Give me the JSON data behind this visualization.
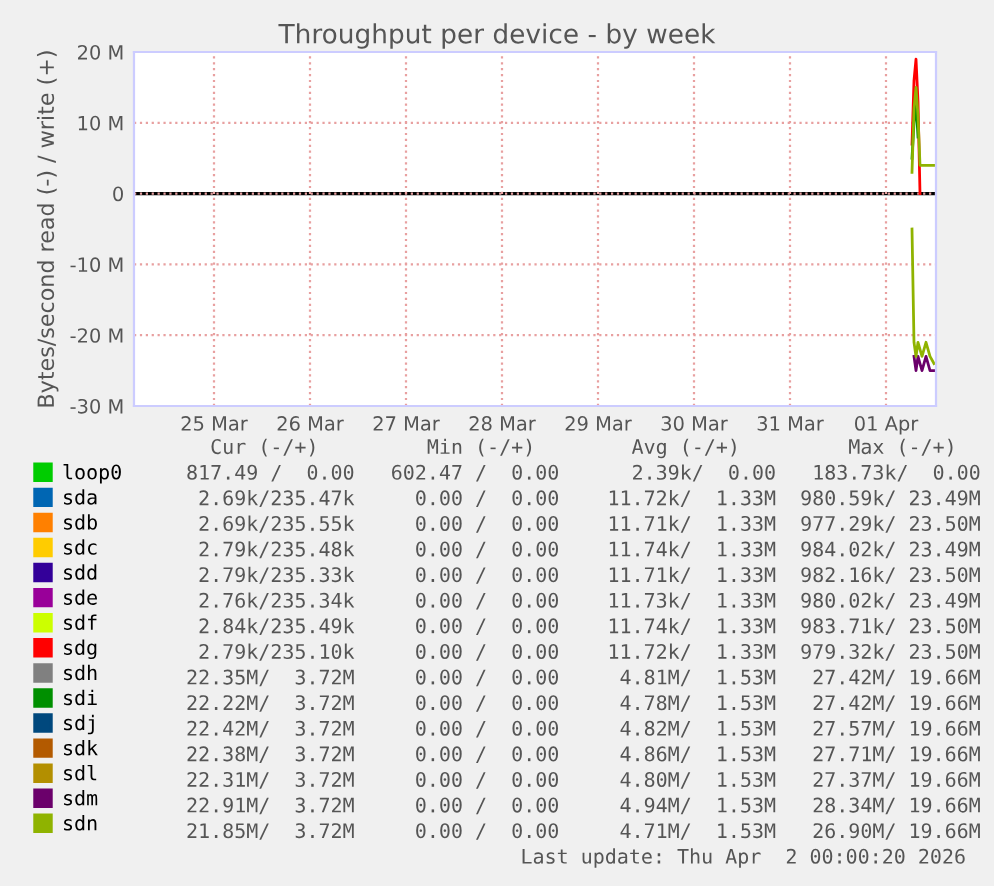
{
  "chart_data": {
    "type": "line",
    "title": "Throughput per device - by week",
    "ylabel": "Bytes/second read (-) / write (+)",
    "x": [
      "2026-04-01T18:30",
      "2026-04-01T19:00",
      "2026-04-01T19:30",
      "2026-04-01T20:00",
      "2026-04-01T20:30",
      "2026-04-01T21:00",
      "2026-04-01T22:00",
      "2026-04-01T23:00",
      "2026-04-02T00:00"
    ],
    "series": [
      {
        "name": "loop0",
        "color": "#00cc00",
        "values": [
          null,
          null,
          null,
          null,
          null,
          null,
          null,
          null,
          null
        ]
      },
      {
        "name": "sda",
        "color": "#0066b3",
        "values": [
          null,
          null,
          null,
          null,
          null,
          null,
          null,
          null,
          null
        ]
      },
      {
        "name": "sdb",
        "color": "#ff8000",
        "values": [
          null,
          null,
          null,
          null,
          null,
          null,
          null,
          null,
          null
        ]
      },
      {
        "name": "sdc",
        "color": "#ffcc00",
        "values": [
          null,
          null,
          null,
          null,
          null,
          null,
          null,
          null,
          null
        ]
      },
      {
        "name": "sdd",
        "color": "#330099",
        "values": [
          null,
          null,
          null,
          null,
          null,
          null,
          null,
          null,
          null
        ]
      },
      {
        "name": "sde",
        "color": "#990099",
        "values": [
          null,
          null,
          null,
          null,
          null,
          null,
          null,
          null,
          null
        ]
      },
      {
        "name": "sdf",
        "color": "#ccff00",
        "values": [
          null,
          null,
          null,
          null,
          null,
          null,
          null,
          null,
          null
        ]
      },
      {
        "name": "sdg",
        "color": "#ff0000",
        "values": [
          7000000,
          16000000,
          19000000,
          13000000,
          0,
          null,
          null,
          null,
          null
        ]
      },
      {
        "name": "sdh",
        "color": "#808080",
        "values": [
          null,
          null,
          null,
          null,
          null,
          null,
          null,
          null,
          null
        ]
      },
      {
        "name": "sdi",
        "color": "#008f00",
        "values": [
          5000000,
          10000000,
          13000000,
          8000000,
          null,
          null,
          null,
          null,
          null
        ]
      },
      {
        "name": "sdj",
        "color": "#00487d",
        "values": [
          null,
          null,
          null,
          null,
          null,
          null,
          null,
          null,
          null
        ]
      },
      {
        "name": "sdk",
        "color": "#b35a00",
        "values": [
          null,
          null,
          null,
          null,
          null,
          null,
          null,
          null,
          null
        ]
      },
      {
        "name": "sdl",
        "color": "#b38f00",
        "values": [
          null,
          null,
          null,
          null,
          null,
          null,
          null,
          null,
          null
        ]
      },
      {
        "name": "sdm",
        "color": "#6b006b",
        "values": [
          null,
          null,
          null,
          null,
          null,
          null,
          null,
          null,
          null
        ]
      },
      {
        "name": "sdn",
        "color": "#8fb300",
        "values": [
          3000000,
          12000000,
          15000000,
          11000000,
          4000000,
          4000000,
          4000000,
          4000000,
          4000000
        ]
      },
      {
        "color": "#6b006b",
        "values": [
          null,
          -23000000,
          -25000000,
          -23000000,
          -24000000,
          -25000000,
          -23000000,
          -25000000,
          -25000000
        ]
      },
      {
        "color": "#8fb300",
        "values": [
          -5000000,
          -21000000,
          -23000000,
          -21000000,
          -22000000,
          -23000000,
          -21000000,
          -23000000,
          -24000000
        ]
      }
    ],
    "xlim": [
      "2026-03-24T16:00",
      "2026-04-02T00:30"
    ],
    "xticks": [
      {
        "value": "2026-03-25T12:00",
        "label": "25 Mar"
      },
      {
        "value": "2026-03-26T12:00",
        "label": "26 Mar"
      },
      {
        "value": "2026-03-27T12:00",
        "label": "27 Mar"
      },
      {
        "value": "2026-03-28T12:00",
        "label": "28 Mar"
      },
      {
        "value": "2026-03-29T12:00",
        "label": "29 Mar"
      },
      {
        "value": "2026-03-30T12:00",
        "label": "30 Mar"
      },
      {
        "value": "2026-03-31T12:00",
        "label": "31 Mar"
      },
      {
        "value": "2026-04-01T12:00",
        "label": "01 Apr"
      }
    ],
    "ylim": [
      -30000000,
      20000000
    ],
    "yticks": [
      {
        "value": -30000000,
        "label": "-30 M"
      },
      {
        "value": -20000000,
        "label": "-20 M"
      },
      {
        "value": -10000000,
        "label": "-10 M"
      },
      0,
      {
        "value": 10000000,
        "label": "10 M"
      },
      {
        "value": 20000000,
        "label": "20 M"
      }
    ],
    "ref_lines": [
      {
        "axis": "y",
        "value": 0,
        "color": "#000000"
      }
    ],
    "grid": true,
    "legend": "bottom left",
    "annotations": [
      "   Cur (-/+)         Min (-/+)        Avg (-/+)         Max (-/+)",
      " 817.49 /  0.00   602.47 /  0.00      2.39k/  0.00   183.73k/  0.00",
      "  2.69k/235.47k     0.00 /  0.00    11.72k/  1.33M  980.59k/ 23.49M",
      "  2.69k/235.55k     0.00 /  0.00    11.71k/  1.33M  977.29k/ 23.50M",
      "  2.79k/235.48k     0.00 /  0.00    11.74k/  1.33M  984.02k/ 23.49M",
      "  2.79k/235.33k     0.00 /  0.00    11.71k/  1.33M  982.16k/ 23.50M",
      "  2.76k/235.34k     0.00 /  0.00    11.73k/  1.33M  980.02k/ 23.49M",
      "  2.84k/235.49k     0.00 /  0.00    11.74k/  1.33M  983.71k/ 23.50M",
      "  2.79k/235.10k     0.00 /  0.00    11.72k/  1.33M  979.32k/ 23.50M",
      " 22.35M/  3.72M     0.00 /  0.00     4.81M/  1.53M   27.42M/ 19.66M",
      " 22.22M/  3.72M     0.00 /  0.00     4.78M/  1.53M   27.42M/ 19.66M",
      " 22.42M/  3.72M     0.00 /  0.00     4.82M/  1.53M   27.57M/ 19.66M",
      " 22.38M/  3.72M     0.00 /  0.00     4.86M/  1.53M   27.71M/ 19.66M",
      " 22.31M/  3.72M     0.00 /  0.00     4.80M/  1.53M   27.37M/ 19.66M",
      " 22.91M/  3.72M     0.00 /  0.00     4.94M/  1.53M   28.34M/ 19.66M",
      " 21.85M/  3.72M     0.00 /  0.00     4.71M/  1.53M   26.90M/ 19.66M",
      "Last update: Thu Apr  2 00:00:20 2026"
    ]
  }
}
